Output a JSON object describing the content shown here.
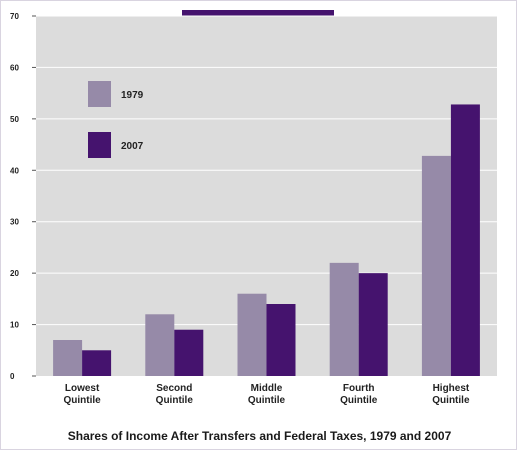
{
  "chart_data": {
    "type": "bar",
    "title": "Shares of Income After Transfers and Federal Taxes, 1979 and 2007",
    "categories": [
      [
        "Lowest",
        "Quintile"
      ],
      [
        "Second",
        "Quintile"
      ],
      [
        "Middle",
        "Quintile"
      ],
      [
        "Fourth",
        "Quintile"
      ],
      [
        "Highest",
        "Quintile"
      ]
    ],
    "series": [
      {
        "name": "1979",
        "color": "#968aa8",
        "values": [
          7,
          12,
          16,
          22,
          42.8
        ]
      },
      {
        "name": "2007",
        "color": "#45136e",
        "values": [
          5,
          9,
          14,
          20,
          52.8
        ]
      }
    ],
    "y_ticks": [
      "0",
      "10",
      "20",
      "30",
      "40",
      "50",
      "60",
      "70"
    ],
    "ylim": [
      0,
      70
    ],
    "grid": true,
    "plot_background": "#dcdcdc",
    "accent_color": "#45136e",
    "legend": "upper-left inside plot"
  }
}
